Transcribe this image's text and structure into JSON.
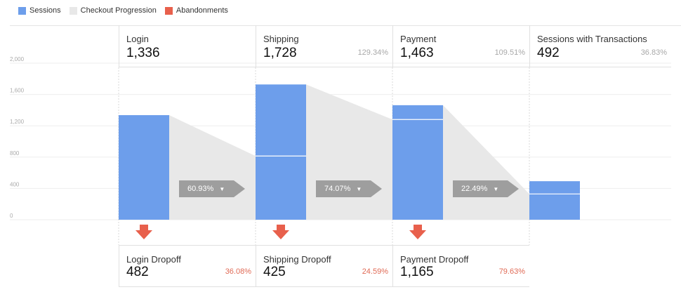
{
  "legend": {
    "sessions": "Sessions",
    "progression": "Checkout Progression",
    "abandonments": "Abandonments"
  },
  "colors": {
    "sessions": "#6d9eeb",
    "progression": "#e8e8e8",
    "abandonments": "#e8604c",
    "arrow": "#9e9e9e",
    "gridline": "#eeeeee"
  },
  "stages": [
    {
      "name": "Login",
      "value": "1,336",
      "pct": ""
    },
    {
      "name": "Shipping",
      "value": "1,728",
      "pct": "129.34%"
    },
    {
      "name": "Payment",
      "value": "1,463",
      "pct": "109.51%"
    },
    {
      "name": "Sessions with Transactions",
      "value": "492",
      "pct": "36.83%"
    }
  ],
  "progress_labels": [
    "60.93%",
    "74.07%",
    "22.49%"
  ],
  "dropoffs": [
    {
      "name": "Login Dropoff",
      "value": "482",
      "pct": "36.08%"
    },
    {
      "name": "Shipping Dropoff",
      "value": "425",
      "pct": "24.59%"
    },
    {
      "name": "Payment Dropoff",
      "value": "1,165",
      "pct": "79.63%"
    }
  ],
  "chart_data": {
    "type": "bar",
    "categories": [
      "Login",
      "Shipping",
      "Payment",
      "Sessions with Transactions"
    ],
    "series": [
      {
        "name": "Sessions",
        "values": [
          1336,
          1728,
          1463,
          492
        ]
      },
      {
        "name": "Checkout Progression",
        "values": [
          0,
          814,
          1280,
          329
        ]
      },
      {
        "name": "Abandonments",
        "values": [
          482,
          425,
          1165,
          0
        ]
      }
    ],
    "ylim": [
      0,
      2000
    ],
    "yticks": [
      "2,000",
      "1,600",
      "1,200",
      "800",
      "400",
      "0"
    ],
    "ytick_values": [
      2000,
      1600,
      1200,
      800,
      400,
      0
    ],
    "grid": true,
    "legend_position": "top-left"
  }
}
